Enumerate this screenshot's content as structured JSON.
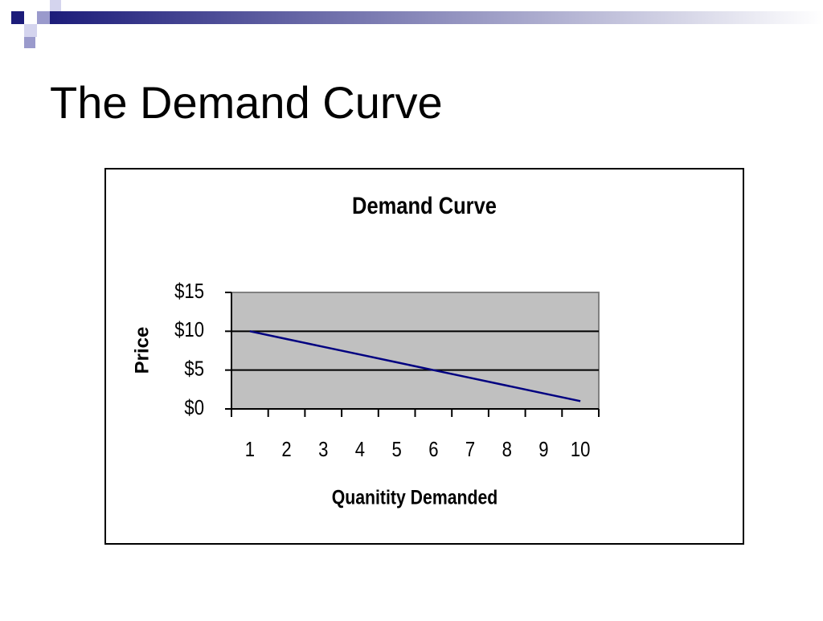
{
  "slide": {
    "title": "The Demand Curve"
  },
  "chart_data": {
    "type": "line",
    "title": "Demand Curve",
    "x_label": "Quanitity Demanded",
    "y_label": "Price",
    "categories": [
      "1",
      "2",
      "3",
      "4",
      "5",
      "6",
      "7",
      "8",
      "9",
      "10"
    ],
    "values": [
      10,
      9,
      8,
      7,
      6,
      5,
      4,
      3,
      2,
      1
    ],
    "color": "#000080",
    "ylim": [
      0,
      15
    ],
    "yticks": [
      {
        "value": 0,
        "label": "$0"
      },
      {
        "value": 5,
        "label": "$5"
      },
      {
        "value": 10,
        "label": "$10"
      },
      {
        "value": 15,
        "label": "$15"
      }
    ],
    "grid": true
  }
}
